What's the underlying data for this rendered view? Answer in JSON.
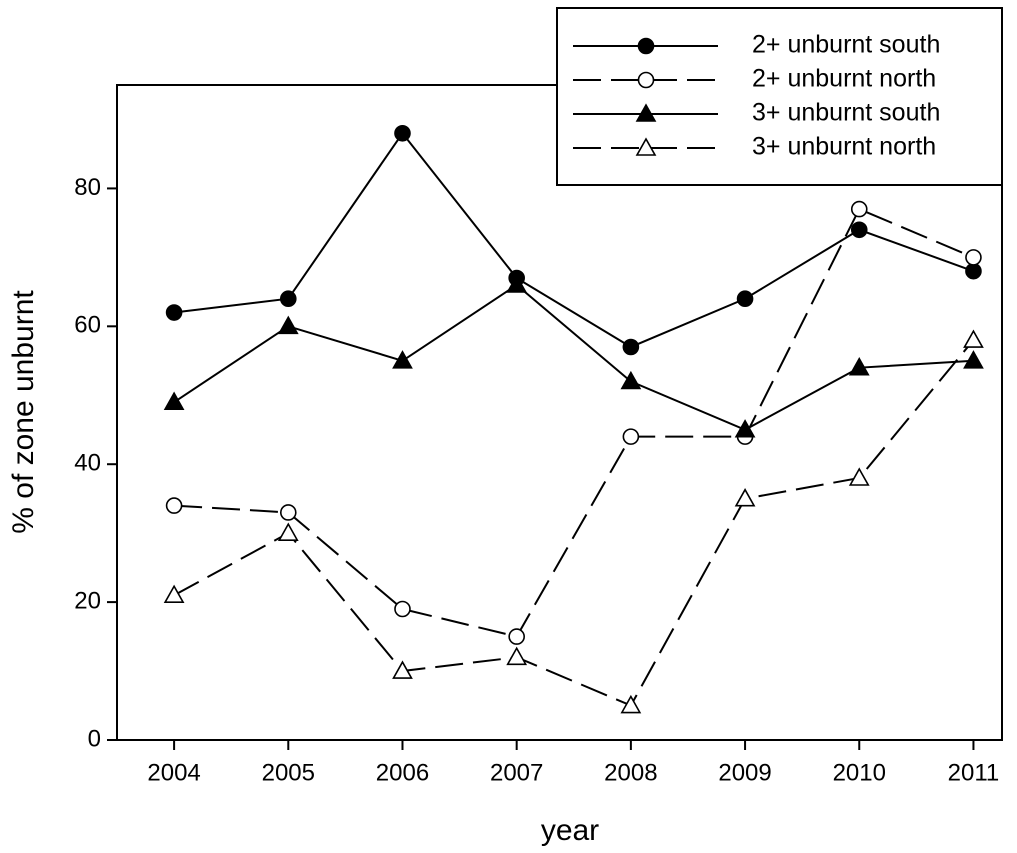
{
  "chart_data": {
    "type": "line",
    "x_label": "year",
    "y_label": "% of zone unburnt",
    "x": [
      2004,
      2005,
      2006,
      2007,
      2008,
      2009,
      2010,
      2011
    ],
    "xlim": [
      2003.5,
      2011.25
    ],
    "xticks": [
      2004,
      2005,
      2006,
      2007,
      2008,
      2009,
      2010,
      2011
    ],
    "ylim": [
      0,
      95
    ],
    "yticks": [
      0,
      20,
      40,
      60,
      80
    ],
    "legend": "upper right",
    "series": [
      {
        "name": "2+ unburnt south",
        "color": "#000000",
        "marker": "circle",
        "filled": true,
        "line_style": "solid",
        "values": [
          62,
          64,
          88,
          67,
          57,
          64,
          74,
          68
        ]
      },
      {
        "name": "2+ unburnt north",
        "color": "#000000",
        "marker": "circle",
        "filled": false,
        "line_style": "dashed",
        "values": [
          34,
          33,
          19,
          15,
          44,
          44,
          77,
          70
        ]
      },
      {
        "name": "3+ unburnt south",
        "color": "#000000",
        "marker": "triangle",
        "filled": true,
        "line_style": "solid",
        "values": [
          49,
          60,
          55,
          66,
          52,
          45,
          54,
          55
        ]
      },
      {
        "name": "3+ unburnt north",
        "color": "#000000",
        "marker": "triangle",
        "filled": false,
        "line_style": "dashed",
        "values": [
          21,
          30,
          10,
          12,
          5,
          35,
          38,
          58
        ]
      }
    ]
  }
}
